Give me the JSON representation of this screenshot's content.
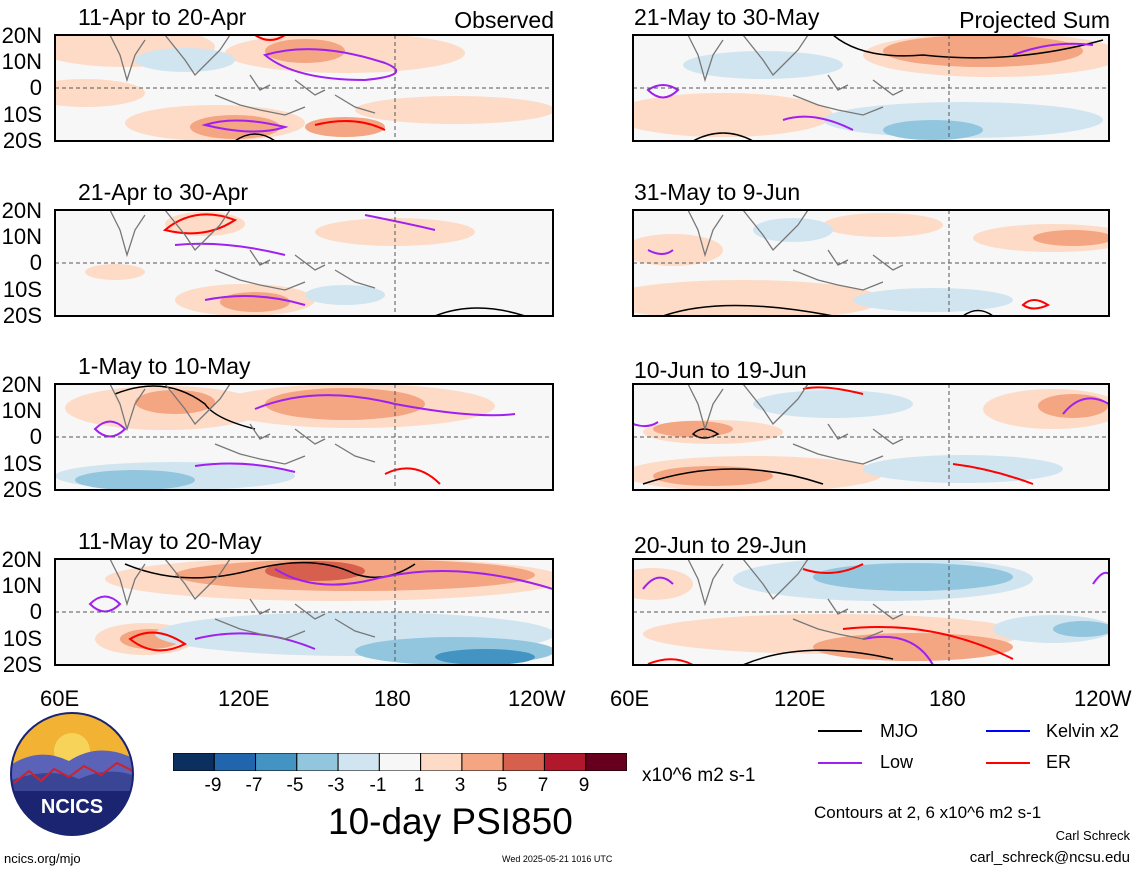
{
  "panels": [
    {
      "title": "11-Apr to 20-Apr",
      "label": "Observed"
    },
    {
      "title": "21-Apr to 30-Apr",
      "label": ""
    },
    {
      "title": "1-May to 10-May",
      "label": ""
    },
    {
      "title": "11-May to 20-May",
      "label": ""
    },
    {
      "title": "21-May to 30-May",
      "label": "Projected Sum"
    },
    {
      "title": "31-May to 9-Jun",
      "label": ""
    },
    {
      "title": "10-Jun to 19-Jun",
      "label": ""
    },
    {
      "title": "20-Jun to 29-Jun",
      "label": ""
    }
  ],
  "lat_labels": [
    "20N",
    "10N",
    "0",
    "10S",
    "20S"
  ],
  "lon_labels": [
    "60E",
    "120E",
    "180",
    "120W"
  ],
  "colorbar": {
    "labels": [
      "-9",
      "-7",
      "-5",
      "-3",
      "-1",
      "1",
      "3",
      "5",
      "7",
      "9"
    ],
    "colors": [
      "#0b2f5e",
      "#2166ac",
      "#4393c3",
      "#92c5de",
      "#d1e5f0",
      "#f7f7f7",
      "#fddbc7",
      "#f4a582",
      "#d6604d",
      "#b2182b",
      "#67001f"
    ],
    "units": "x10^6 m2 s-1",
    "title": "10-day PSI850"
  },
  "legend": [
    {
      "name": "MJO",
      "color": "#000000"
    },
    {
      "name": "Kelvin x2",
      "color": "#0000ff"
    },
    {
      "name": "Low",
      "color": "#a020f0"
    },
    {
      "name": "ER",
      "color": "#ff0000"
    }
  ],
  "contours_note": "Contours at 2, 6 x10^6 m2 s-1",
  "author": "Carl Schreck",
  "email": "carl_schreck@ncsu.edu",
  "url": "ncics.org/mjo",
  "timestamp": "Wed 2025-05-21 1016 UTC",
  "logo_text": "NCICS"
}
